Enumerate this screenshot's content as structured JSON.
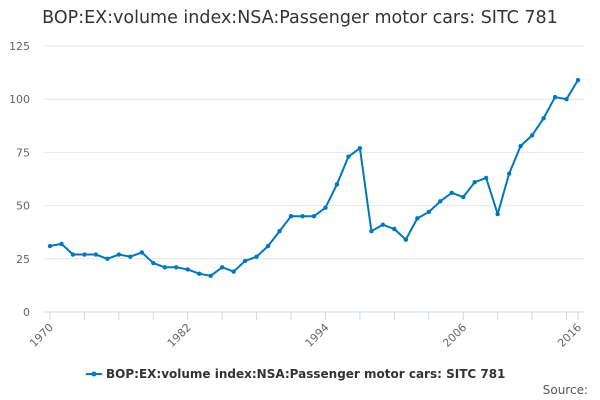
{
  "chart_data": {
    "type": "line",
    "title": "BOP:EX:volume index:NSA:Passenger motor cars: SITC 781",
    "xlabel": "",
    "ylabel": "",
    "x": [
      1970,
      1971,
      1972,
      1973,
      1974,
      1975,
      1976,
      1977,
      1978,
      1979,
      1980,
      1981,
      1982,
      1983,
      1984,
      1985,
      1986,
      1987,
      1988,
      1989,
      1990,
      1991,
      1992,
      1993,
      1994,
      1995,
      1996,
      1997,
      1998,
      1999,
      2000,
      2001,
      2002,
      2003,
      2004,
      2005,
      2006,
      2007,
      2008,
      2009,
      2010,
      2011,
      2012,
      2013,
      2014,
      2015,
      2016
    ],
    "series": [
      {
        "name": "BOP:EX:volume index:NSA:Passenger motor cars: SITC 781",
        "color": "#0077bf",
        "values": [
          31,
          32,
          27,
          27,
          27,
          25,
          27,
          26,
          28,
          23,
          21,
          21,
          20,
          18,
          17,
          21,
          19,
          24,
          26,
          31,
          38,
          45,
          45,
          45,
          49,
          60,
          73,
          77,
          38,
          41,
          39,
          34,
          44,
          47,
          52,
          56,
          54,
          61,
          63,
          46,
          65,
          78,
          83,
          91,
          101,
          100,
          109
        ]
      }
    ],
    "xlim": [
      1970,
      2016
    ],
    "ylim": [
      0,
      125
    ],
    "x_tick_labels": [
      "1970",
      "1982",
      "1994",
      "2006",
      "2016"
    ],
    "y_tick_labels": [
      "0",
      "25",
      "50",
      "75",
      "100",
      "125"
    ],
    "grid": "horizontal",
    "legend_placement": "bottom"
  },
  "footer": {
    "source": "Source:"
  }
}
